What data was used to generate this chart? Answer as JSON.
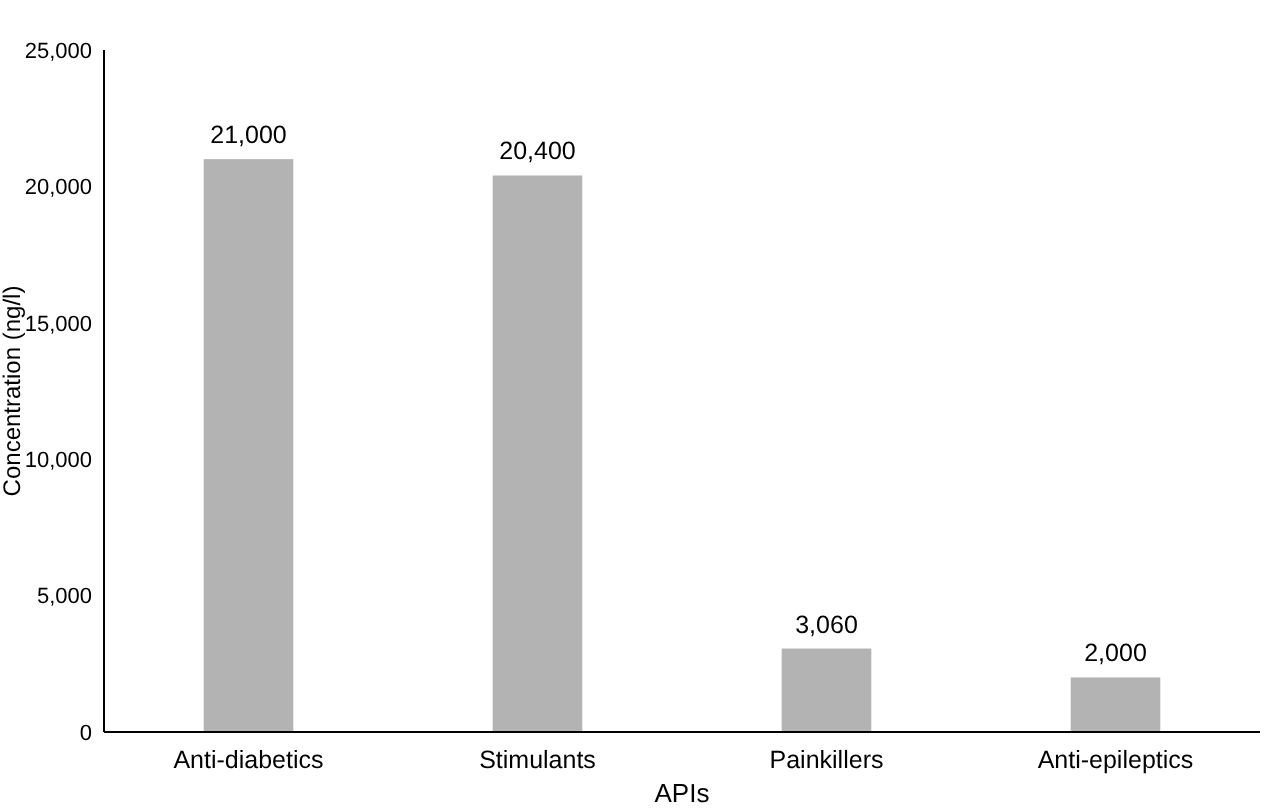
{
  "chart_data": {
    "type": "bar",
    "categories": [
      "Anti-diabetics",
      "Stimulants",
      "Painkillers",
      "Anti-epileptics"
    ],
    "values": [
      21000,
      20400,
      3060,
      2000
    ],
    "value_labels": [
      "21,000",
      "20,400",
      "3,060",
      "2,000"
    ],
    "color": "#b3b3b3",
    "xlabel": "APIs",
    "ylabel": "Concentration (ng/l)",
    "ylim": [
      0,
      25000
    ],
    "yticks": [
      {
        "value": 0,
        "label": "0"
      },
      {
        "value": 5000,
        "label": "5,000"
      },
      {
        "value": 10000,
        "label": "10,000"
      },
      {
        "value": 15000,
        "label": "15,000"
      },
      {
        "value": 20000,
        "label": "20,000"
      },
      {
        "value": 25000,
        "label": "25,000"
      }
    ],
    "grid": false
  }
}
